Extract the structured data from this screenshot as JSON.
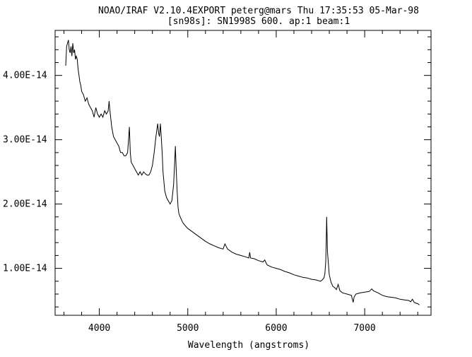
{
  "header": {
    "line1": "NOAO/IRAF V2.10.4EXPORT peterg@mars Thu 17:35:53 05-Mar-98",
    "line2": "[sn98s]: SN1998S 600. ap:1 beam:1"
  },
  "chart_data": {
    "type": "line",
    "title": "NOAO/IRAF V2.10.4EXPORT peterg@mars Thu 17:35:53 05-Mar-98",
    "subtitle": "[sn98s]: SN1998S 600. ap:1 beam:1",
    "xlabel": "Wavelength (angstroms)",
    "ylabel": "",
    "xlim": [
      3500,
      7750
    ],
    "ylim": [
      2.7e-15,
      4.7e-14
    ],
    "x_ticks": [
      4000,
      5000,
      6000,
      7000
    ],
    "x_tick_labels": [
      "4000",
      "5000",
      "6000",
      "7000"
    ],
    "y_ticks": [
      1e-14,
      2e-14,
      3e-14,
      4e-14
    ],
    "y_tick_labels": [
      "1.00E-14",
      "2.00E-14",
      "3.00E-14",
      "4.00E-14"
    ],
    "grid": false,
    "series": [
      {
        "x": [
          3620,
          3630,
          3640,
          3650,
          3660,
          3670,
          3680,
          3690,
          3700,
          3710,
          3720,
          3730,
          3740,
          3750,
          3760,
          3770,
          3780,
          3790,
          3800,
          3820,
          3840,
          3860,
          3880,
          3900,
          3920,
          3940,
          3960,
          3980,
          4000,
          4020,
          4040,
          4060,
          4080,
          4100,
          4110,
          4120,
          4140,
          4160,
          4180,
          4200,
          4220,
          4240,
          4260,
          4280,
          4300,
          4320,
          4330,
          4340,
          4350,
          4360,
          4380,
          4400,
          4420,
          4440,
          4460,
          4480,
          4500,
          4520,
          4540,
          4560,
          4580,
          4600,
          4620,
          4640,
          4660,
          4670,
          4680,
          4690,
          4700,
          4710,
          4720,
          4740,
          4760,
          4780,
          4800,
          4820,
          4840,
          4850,
          4860,
          4870,
          4880,
          4890,
          4900,
          4920,
          4940,
          4960,
          4980,
          5000,
          5050,
          5100,
          5150,
          5200,
          5250,
          5300,
          5350,
          5400,
          5420,
          5450,
          5500,
          5550,
          5600,
          5650,
          5690,
          5700,
          5710,
          5750,
          5800,
          5850,
          5870,
          5890,
          5900,
          5950,
          6000,
          6050,
          6100,
          6150,
          6200,
          6250,
          6300,
          6350,
          6400,
          6450,
          6500,
          6520,
          6540,
          6550,
          6560,
          6565,
          6570,
          6580,
          6600,
          6620,
          6640,
          6660,
          6680,
          6700,
          6720,
          6750,
          6800,
          6850,
          6870,
          6880,
          6900,
          6950,
          7000,
          7050,
          7080,
          7100,
          7150,
          7200,
          7250,
          7300,
          7350,
          7400,
          7450,
          7500,
          7520,
          7540,
          7560,
          7600,
          7620
        ],
        "values": [
          4.15e-14,
          4.45e-14,
          4.5e-14,
          4.55e-14,
          4.4e-14,
          4.35e-14,
          4.45e-14,
          4.3e-14,
          4.5e-14,
          4.35e-14,
          4.4e-14,
          4.25e-14,
          4.3e-14,
          4.25e-14,
          4.1e-14,
          4e-14,
          3.9e-14,
          3.85e-14,
          3.75e-14,
          3.7e-14,
          3.6e-14,
          3.65e-14,
          3.55e-14,
          3.5e-14,
          3.45e-14,
          3.35e-14,
          3.5e-14,
          3.4e-14,
          3.35e-14,
          3.4e-14,
          3.35e-14,
          3.45e-14,
          3.4e-14,
          3.45e-14,
          3.6e-14,
          3.45e-14,
          3.2e-14,
          3.05e-14,
          3e-14,
          2.95e-14,
          2.9e-14,
          2.8e-14,
          2.8e-14,
          2.75e-14,
          2.75e-14,
          2.8e-14,
          3e-14,
          3.2e-14,
          2.8e-14,
          2.65e-14,
          2.6e-14,
          2.55e-14,
          2.5e-14,
          2.45e-14,
          2.5e-14,
          2.45e-14,
          2.5e-14,
          2.47e-14,
          2.45e-14,
          2.45e-14,
          2.5e-14,
          2.6e-14,
          2.8e-14,
          3.05e-14,
          3.25e-14,
          3.1e-14,
          3.05e-14,
          3.25e-14,
          3.05e-14,
          2.8e-14,
          2.5e-14,
          2.2e-14,
          2.1e-14,
          2.05e-14,
          2e-14,
          2.05e-14,
          2.3e-14,
          2.6e-14,
          2.9e-14,
          2.5e-14,
          2.2e-14,
          1.95e-14,
          1.85e-14,
          1.78e-14,
          1.72e-14,
          1.68e-14,
          1.65e-14,
          1.62e-14,
          1.57e-14,
          1.52e-14,
          1.47e-14,
          1.42e-14,
          1.38e-14,
          1.35e-14,
          1.32e-14,
          1.3e-14,
          1.38e-14,
          1.3e-14,
          1.25e-14,
          1.22e-14,
          1.2e-14,
          1.18e-14,
          1.16e-14,
          1.25e-14,
          1.16e-14,
          1.15e-14,
          1.12e-14,
          1.1e-14,
          1.13e-14,
          1.07e-14,
          1.05e-14,
          1.02e-14,
          1e-14,
          9.8e-15,
          9.5e-15,
          9.3e-15,
          9e-15,
          8.8e-15,
          8.6e-15,
          8.5e-15,
          8.3e-15,
          8.2e-15,
          8e-15,
          8.2e-15,
          8.5e-15,
          9.2e-15,
          1.1e-14,
          1.42e-14,
          1.8e-14,
          1.25e-14,
          9e-15,
          7.8e-15,
          7.2e-15,
          7e-15,
          6.7e-15,
          7.5e-15,
          6.5e-15,
          6.2e-15,
          6e-15,
          5.8e-15,
          4.7e-15,
          5.5e-15,
          6e-15,
          6.2e-15,
          6.3e-15,
          6.4e-15,
          6.8e-15,
          6.5e-15,
          6.2e-15,
          5.8e-15,
          5.6e-15,
          5.5e-15,
          5.4e-15,
          5.2e-15,
          5.1e-15,
          5e-15,
          4.8e-15,
          5.2e-15,
          4.7e-15,
          4.5e-15,
          4.3e-15
        ]
      }
    ]
  }
}
